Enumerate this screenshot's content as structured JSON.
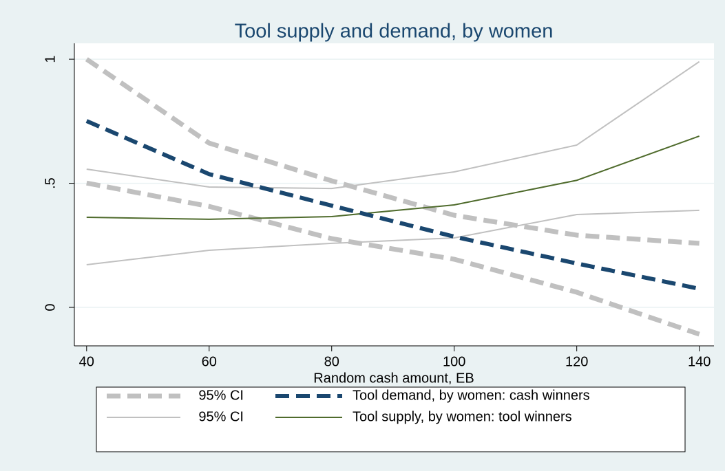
{
  "chart_data": {
    "type": "line",
    "title": "Tool supply and demand, by women",
    "x_label": "Random cash amount, EB",
    "x": [
      40,
      60,
      80,
      100,
      120,
      140
    ],
    "xlim": [
      38,
      142.4
    ],
    "xticks": [
      40,
      60,
      80,
      100,
      120,
      140
    ],
    "ylim": [
      -0.155,
      1.064
    ],
    "yticks": [
      0,
      {
        "value": 0.5,
        "label": ".5"
      },
      1
    ],
    "grid": true,
    "series": [
      {
        "name": "95% CI",
        "color": "#c0c0c0",
        "dash": true,
        "width": 7,
        "values": [
          1.0,
          0.662,
          0.51,
          0.371,
          0.291,
          0.258
        ],
        "lower": [
          0.501,
          0.407,
          0.277,
          0.194,
          0.061,
          -0.108
        ]
      },
      {
        "name": "Tool demand, by women: cash winners",
        "color": "#1a476f",
        "dash": true,
        "width": 6,
        "values": [
          0.751,
          0.537,
          0.41,
          0.285,
          0.177,
          0.075
        ]
      },
      {
        "name": "95% CI",
        "color": "#c0c0c0",
        "dash": false,
        "width": 2,
        "values": [
          0.557,
          0.485,
          0.479,
          0.546,
          0.654,
          0.99
        ],
        "lower": [
          0.172,
          0.23,
          0.258,
          0.28,
          0.374,
          0.391
        ]
      },
      {
        "name": "Tool supply, by women: tool winners",
        "color": "#4f6b2c",
        "dash": false,
        "width": 2,
        "values": [
          0.363,
          0.355,
          0.366,
          0.413,
          0.512,
          0.69
        ]
      }
    ]
  }
}
